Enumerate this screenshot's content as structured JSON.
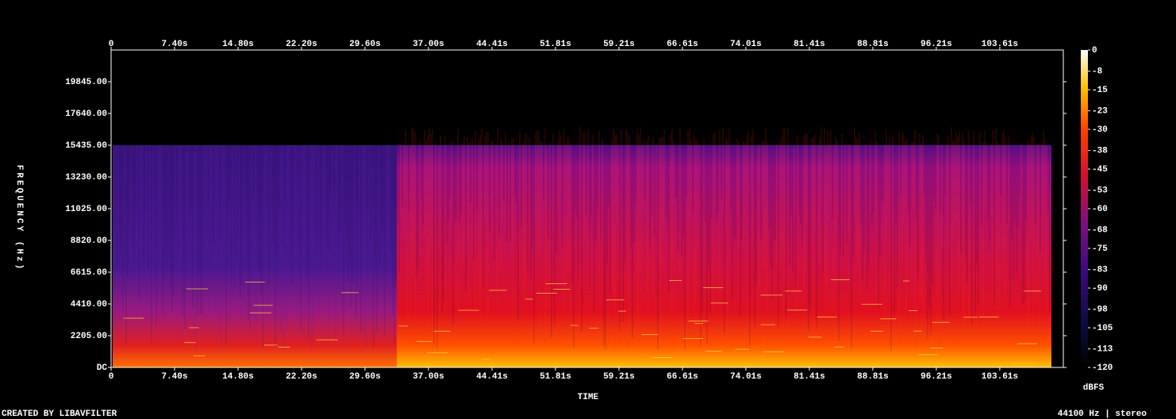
{
  "chart_data": {
    "type": "spectrogram",
    "x_label": "TIME",
    "y_label": "FREQUENCY (Hz)",
    "colorbar_label": "dBFS",
    "xlim": [
      0,
      111.02
    ],
    "xticks": [
      0,
      {
        "value": 7.4,
        "label": "7.40s"
      },
      {
        "value": 14.8,
        "label": "14.80s"
      },
      {
        "value": 22.2,
        "label": "22.20s"
      },
      {
        "value": 29.6,
        "label": "29.60s"
      },
      {
        "value": 37.0,
        "label": "37.00s"
      },
      {
        "value": 44.41,
        "label": "44.41s"
      },
      {
        "value": 51.81,
        "label": "51.81s"
      },
      {
        "value": 59.21,
        "label": "59.21s"
      },
      {
        "value": 66.61,
        "label": "66.61s"
      },
      {
        "value": 74.01,
        "label": "74.01s"
      },
      {
        "value": 81.41,
        "label": "81.41s"
      },
      {
        "value": 88.81,
        "label": "88.81s"
      },
      {
        "value": 96.21,
        "label": "96.21s"
      },
      {
        "value": 103.61,
        "label": "103.61s"
      }
    ],
    "ylim": [
      0,
      22050
    ],
    "yticks": [
      {
        "value": 0,
        "label": "DC"
      },
      {
        "value": 2205,
        "label": "2205.00"
      },
      {
        "value": 4410,
        "label": "4410.00"
      },
      {
        "value": 6615,
        "label": "6615.00"
      },
      {
        "value": 8820,
        "label": "8820.00"
      },
      {
        "value": 11025,
        "label": "11025.00"
      },
      {
        "value": 13230,
        "label": "13230.00"
      },
      {
        "value": 15435,
        "label": "15435.00"
      },
      {
        "value": 17640,
        "label": "17640.00"
      },
      {
        "value": 19845,
        "label": "19845.00"
      }
    ],
    "clim": [
      -120,
      0
    ],
    "cticks": [
      0,
      -8,
      -15,
      -23,
      -30,
      -38,
      -45,
      -53,
      -60,
      -68,
      -75,
      -83,
      -90,
      -98,
      -105,
      -113,
      -120
    ]
  },
  "footer": {
    "left": "CREATED BY LIBAVFILTER",
    "right": "44100 Hz | stereo"
  }
}
